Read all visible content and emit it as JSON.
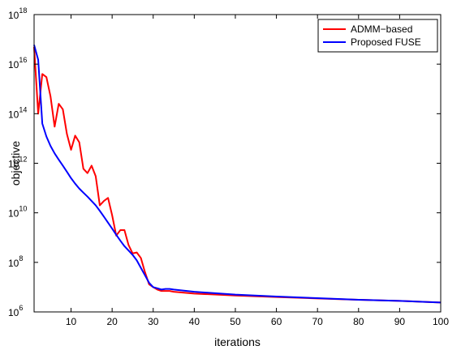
{
  "chart_data": {
    "type": "line",
    "title": "",
    "xlabel": "iterations",
    "ylabel": "objective",
    "xlim": [
      1,
      100
    ],
    "ylim": [
      1000000,
      1000000000000000000
    ],
    "yscale": "log",
    "grid": false,
    "legend_position": "top-right",
    "x_ticks": [
      10,
      20,
      30,
      40,
      50,
      60,
      70,
      80,
      90,
      100
    ],
    "y_ticks": [
      {
        "base": "10",
        "exp": "6",
        "value": 1000000
      },
      {
        "base": "10",
        "exp": "8",
        "value": 100000000
      },
      {
        "base": "10",
        "exp": "10",
        "value": 10000000000
      },
      {
        "base": "10",
        "exp": "12",
        "value": 1000000000000
      },
      {
        "base": "10",
        "exp": "14",
        "value": 100000000000000
      },
      {
        "base": "10",
        "exp": "16",
        "value": 10000000000000000
      },
      {
        "base": "10",
        "exp": "18",
        "value": 1000000000000000000
      }
    ],
    "series": [
      {
        "name": "ADMM−based",
        "color": "#ff0000",
        "x": [
          1,
          2,
          3,
          4,
          5,
          6,
          7,
          8,
          9,
          10,
          11,
          12,
          13,
          14,
          15,
          16,
          17,
          18,
          19,
          20,
          21,
          22,
          23,
          24,
          25,
          26,
          27,
          28,
          29,
          30,
          31,
          32,
          33,
          34,
          35,
          40,
          50,
          60,
          70,
          80,
          90,
          100
        ],
        "y": [
          5e+16,
          100000000000000.0,
          4000000000000000.0,
          3000000000000000.0,
          500000000000000.0,
          30000000000000.0,
          250000000000000.0,
          150000000000000.0,
          15000000000000.0,
          3500000000000.0,
          13000000000000.0,
          7000000000000.0,
          600000000000.0,
          400000000000.0,
          800000000000.0,
          300000000000.0,
          20000000000.0,
          30000000000.0,
          40000000000.0,
          8000000000.0,
          1200000000.0,
          2000000000.0,
          2000000000.0,
          500000000.0,
          230000000.0,
          250000000.0,
          150000000.0,
          40000000.0,
          13000000.0,
          10000000.0,
          8000000.0,
          7000000.0,
          7000000.0,
          7000000.0,
          6500000.0,
          5500000.0,
          4600000.0,
          4000000.0,
          3500000.0,
          3100000.0,
          2800000.0,
          2400000.0
        ]
      },
      {
        "name": "Proposed FUSE",
        "color": "#0000ff",
        "x": [
          1,
          2,
          3,
          4,
          5,
          6,
          7,
          8,
          9,
          10,
          11,
          12,
          13,
          14,
          15,
          16,
          17,
          18,
          19,
          20,
          21,
          22,
          23,
          24,
          25,
          26,
          27,
          28,
          29,
          30,
          31,
          32,
          33,
          34,
          35,
          40,
          50,
          60,
          70,
          80,
          90,
          100
        ],
        "y": [
          6e+16,
          1.5e+16,
          40000000000000.0,
          12000000000000.0,
          5000000000000.0,
          2500000000000.0,
          1400000000000.0,
          800000000000.0,
          450000000000.0,
          250000000000.0,
          150000000000.0,
          95000000000.0,
          65000000000.0,
          45000000000.0,
          30000000000.0,
          20000000000.0,
          12000000000.0,
          7000000000.0,
          4000000000.0,
          2300000000.0,
          1300000000.0,
          750000000.0,
          450000000.0,
          300000000.0,
          200000000.0,
          120000000.0,
          60000000.0,
          30000000.0,
          15000000.0,
          10000000.0,
          9000000.0,
          8000000.0,
          8500000.0,
          8500000.0,
          8000000.0,
          6500000.0,
          5000000.0,
          4200000.0,
          3600000.0,
          3100000.0,
          2800000.0,
          2400000.0
        ]
      }
    ]
  }
}
